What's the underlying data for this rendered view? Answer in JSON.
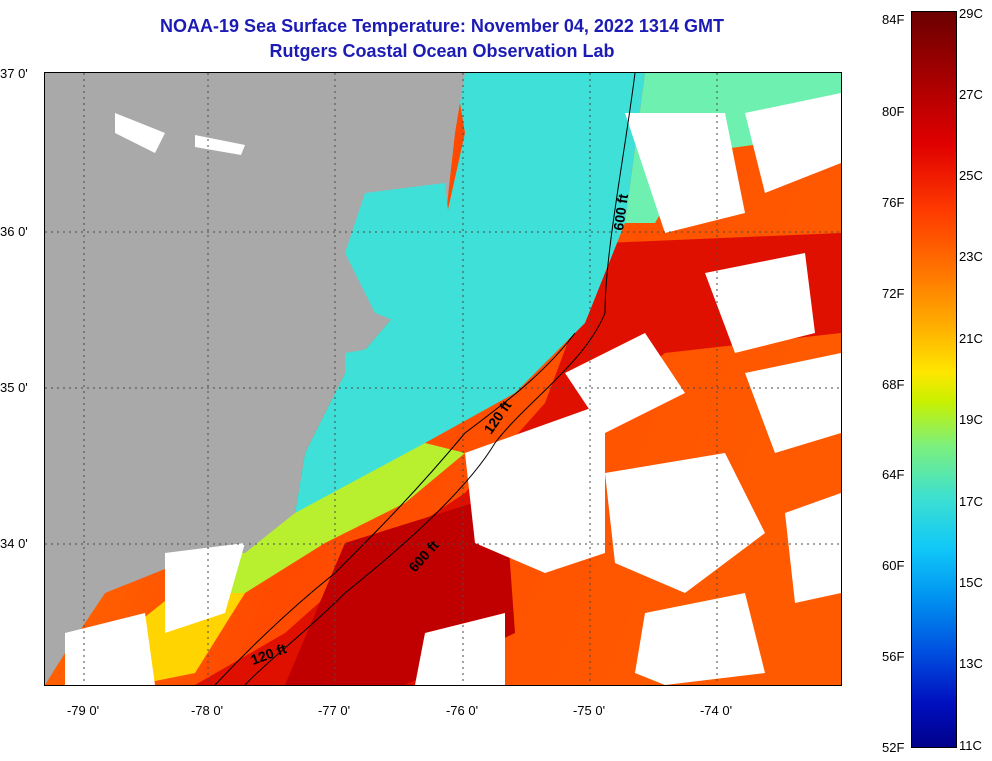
{
  "title": {
    "line1": "NOAA-19 Sea Surface Temperature:  November 04, 2022 1314 GMT",
    "line2": "Rutgers Coastal Ocean Observation Lab"
  },
  "map": {
    "latitude_labels": [
      "37 0'",
      "36 0'",
      "35 0'",
      "34 0'"
    ],
    "longitude_labels": [
      "-79 0'",
      "-78 0'",
      "-77 0'",
      "-76 0'",
      "-75 0'",
      "-74 0'"
    ],
    "contour_labels": [
      "600 ft",
      "120 ft",
      "600 ft",
      "120 ft"
    ],
    "extent": {
      "lon_min": -79.3,
      "lon_max": -72.9,
      "lat_min": 33.1,
      "lat_max": 37.0
    }
  },
  "colorbar": {
    "fahrenheit_labels": [
      "84F",
      "80F",
      "76F",
      "72F",
      "68F",
      "64F",
      "60F",
      "56F",
      "52F"
    ],
    "celsius_labels": [
      "29C",
      "27C",
      "25C",
      "23C",
      "21C",
      "19C",
      "17C",
      "15C",
      "13C",
      "11C"
    ],
    "colors": {
      "hot": "#8b0000",
      "warm": "#ff3000",
      "mid": "#ffe600",
      "cool": "#10c8f8",
      "cold": "#00008a"
    }
  },
  "colors": {
    "land": "#a9a9a9",
    "cloud": "#ffffff",
    "title": "#1c1cb4"
  }
}
